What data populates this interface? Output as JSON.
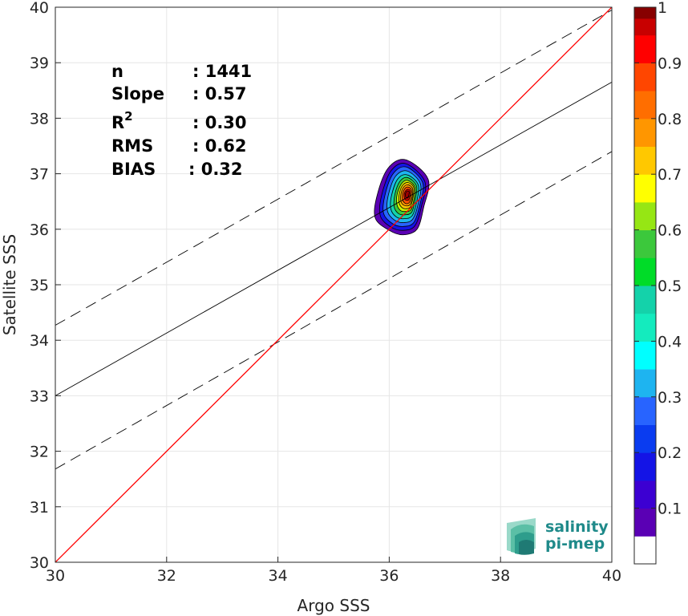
{
  "chart_data": {
    "type": "contour",
    "xlabel": "Argo SSS",
    "ylabel": "Satellite SSS",
    "xlim": [
      30,
      40
    ],
    "ylim": [
      30,
      40
    ],
    "xticks": [
      30,
      32,
      34,
      36,
      38,
      40
    ],
    "yticks": [
      30,
      31,
      32,
      33,
      34,
      35,
      36,
      37,
      38,
      39,
      40
    ],
    "grid": true,
    "stats": [
      {
        "label": "n",
        "value": ": 1441"
      },
      {
        "label": "Slope",
        "value": ": 0.57"
      },
      {
        "label": "R",
        "sup": "2",
        "value": ": 0.30"
      },
      {
        "label": "RMS",
        "value": ": 0.62"
      },
      {
        "label": "BIAS",
        "value": ": 0.32"
      }
    ],
    "lines": {
      "identity": {
        "x": [
          30,
          40
        ],
        "y": [
          30,
          40
        ],
        "color": "#ff0000"
      },
      "fit": {
        "x": [
          30,
          40
        ],
        "y": [
          33.0,
          38.65
        ],
        "color": "#000000"
      },
      "fit_upper": {
        "x": [
          30,
          40
        ],
        "y": [
          34.27,
          39.95
        ],
        "color": "#000000",
        "dash": true
      },
      "fit_lower": {
        "x": [
          30,
          40
        ],
        "y": [
          31.68,
          37.4
        ],
        "color": "#000000",
        "dash": true
      }
    },
    "density": {
      "peak_x": 36.33,
      "peak_y": 36.63,
      "levels": [
        {
          "level": 0.05,
          "color": "#5a00b4",
          "x": [
            35.98,
            36.3,
            36.7,
            36.62,
            36.5,
            36.25,
            36.0,
            35.75,
            35.78,
            35.98
          ],
          "y": [
            37.1,
            37.25,
            36.9,
            36.4,
            36.0,
            35.9,
            35.98,
            36.2,
            36.6,
            37.1
          ]
        },
        {
          "level": 0.15,
          "color": "#1414e6",
          "x": [
            36.03,
            36.3,
            36.64,
            36.58,
            36.46,
            36.25,
            36.03,
            35.84,
            35.86,
            36.03
          ],
          "y": [
            37.05,
            37.18,
            36.86,
            36.42,
            36.06,
            35.98,
            36.04,
            36.24,
            36.6,
            37.05
          ]
        },
        {
          "level": 0.25,
          "color": "#2864ff",
          "x": [
            36.07,
            36.31,
            36.6,
            36.55,
            36.44,
            36.25,
            36.06,
            35.9,
            35.92,
            36.07
          ],
          "y": [
            37.0,
            37.12,
            36.84,
            36.44,
            36.12,
            36.05,
            36.1,
            36.28,
            36.6,
            37.0
          ]
        },
        {
          "level": 0.35,
          "color": "#1eb4f0",
          "x": [
            36.11,
            36.32,
            36.56,
            36.52,
            36.42,
            36.26,
            36.1,
            35.97,
            35.98,
            36.11
          ],
          "y": [
            36.95,
            37.05,
            36.82,
            36.46,
            36.18,
            36.12,
            36.16,
            36.32,
            36.6,
            36.95
          ]
        },
        {
          "level": 0.45,
          "color": "#14d2aa",
          "x": [
            36.15,
            36.32,
            36.52,
            36.49,
            36.41,
            36.27,
            36.13,
            36.03,
            36.04,
            36.15
          ],
          "y": [
            36.9,
            36.98,
            36.8,
            36.48,
            36.24,
            36.19,
            36.22,
            36.36,
            36.6,
            36.9
          ]
        },
        {
          "level": 0.55,
          "color": "#3cc83c",
          "x": [
            36.19,
            36.33,
            36.49,
            36.46,
            36.4,
            36.28,
            36.17,
            36.09,
            36.1,
            36.19
          ],
          "y": [
            36.86,
            36.93,
            36.78,
            36.5,
            36.3,
            36.26,
            36.28,
            36.4,
            36.62,
            36.86
          ]
        },
        {
          "level": 0.62,
          "color": "#c8f000",
          "x": [
            36.22,
            36.33,
            36.46,
            36.44,
            36.39,
            36.29,
            36.2,
            36.14,
            36.14,
            36.22
          ],
          "y": [
            36.82,
            36.88,
            36.76,
            36.52,
            36.35,
            36.32,
            36.34,
            36.44,
            36.62,
            36.82
          ]
        },
        {
          "level": 0.7,
          "color": "#ffc800",
          "x": [
            36.24,
            36.34,
            36.44,
            36.42,
            36.38,
            36.3,
            36.23,
            36.18,
            36.18,
            36.24
          ],
          "y": [
            36.79,
            36.84,
            36.75,
            36.54,
            36.4,
            36.37,
            36.39,
            36.47,
            36.63,
            36.79
          ]
        },
        {
          "level": 0.78,
          "color": "#ff9600",
          "x": [
            36.26,
            36.34,
            36.42,
            36.41,
            36.37,
            36.31,
            36.25,
            36.21,
            36.21,
            36.26
          ],
          "y": [
            36.76,
            36.8,
            36.73,
            36.56,
            36.44,
            36.42,
            36.44,
            36.5,
            36.63,
            36.76
          ]
        },
        {
          "level": 0.85,
          "color": "#ff5000",
          "x": [
            36.28,
            36.34,
            36.4,
            36.39,
            36.36,
            36.31,
            36.27,
            36.24,
            36.24,
            36.28
          ],
          "y": [
            36.73,
            36.76,
            36.71,
            36.58,
            36.48,
            36.46,
            36.48,
            36.53,
            36.63,
            36.73
          ]
        },
        {
          "level": 0.92,
          "color": "#e60000",
          "x": [
            36.3,
            36.34,
            36.38,
            36.37,
            36.35,
            36.32,
            36.29,
            36.27,
            36.27,
            36.3
          ],
          "y": [
            36.7,
            36.72,
            36.69,
            36.6,
            36.53,
            36.52,
            36.53,
            36.57,
            36.64,
            36.7
          ]
        },
        {
          "level": 0.97,
          "color": "#9b0000",
          "x": [
            36.31,
            36.34,
            36.36,
            36.35,
            36.34,
            36.32,
            36.3,
            36.29,
            36.29,
            36.31
          ],
          "y": [
            36.68,
            36.69,
            36.67,
            36.61,
            36.57,
            36.56,
            36.57,
            36.6,
            36.64,
            36.68
          ]
        }
      ]
    },
    "colorbar": {
      "range": [
        0,
        1
      ],
      "ticks": [
        0.1,
        0.2,
        0.3,
        0.4,
        0.5,
        0.6,
        0.7,
        0.8,
        0.9,
        1
      ],
      "tick_labels": [
        "0.1",
        "0.2",
        "0.3",
        "0.4",
        "0.5",
        "0.6",
        "0.7",
        "0.8",
        "0.9",
        "1"
      ],
      "bands": [
        {
          "from": 0.0,
          "to": 0.05,
          "color": "#ffffff"
        },
        {
          "from": 0.05,
          "to": 0.1,
          "color": "#5a00b4"
        },
        {
          "from": 0.1,
          "to": 0.15,
          "color": "#3c00d2"
        },
        {
          "from": 0.15,
          "to": 0.2,
          "color": "#1414e6"
        },
        {
          "from": 0.2,
          "to": 0.25,
          "color": "#0a3cf0"
        },
        {
          "from": 0.25,
          "to": 0.3,
          "color": "#2864ff"
        },
        {
          "from": 0.3,
          "to": 0.35,
          "color": "#1eb4f0"
        },
        {
          "from": 0.35,
          "to": 0.4,
          "color": "#00ffff"
        },
        {
          "from": 0.4,
          "to": 0.45,
          "color": "#14ebbe"
        },
        {
          "from": 0.45,
          "to": 0.5,
          "color": "#14d2aa"
        },
        {
          "from": 0.5,
          "to": 0.55,
          "color": "#00dc28"
        },
        {
          "from": 0.55,
          "to": 0.6,
          "color": "#3cc83c"
        },
        {
          "from": 0.6,
          "to": 0.65,
          "color": "#96e614"
        },
        {
          "from": 0.65,
          "to": 0.7,
          "color": "#ffff00"
        },
        {
          "from": 0.7,
          "to": 0.75,
          "color": "#ffc800"
        },
        {
          "from": 0.75,
          "to": 0.8,
          "color": "#ff9600"
        },
        {
          "from": 0.8,
          "to": 0.85,
          "color": "#ff6e00"
        },
        {
          "from": 0.85,
          "to": 0.9,
          "color": "#ff4600"
        },
        {
          "from": 0.9,
          "to": 0.95,
          "color": "#ff0000"
        },
        {
          "from": 0.95,
          "to": 0.98,
          "color": "#c80000"
        },
        {
          "from": 0.98,
          "to": 1.0,
          "color": "#870000"
        }
      ]
    }
  },
  "logo": {
    "line1": "salinity",
    "line2": "pi-mep",
    "color": "#1f8a8a"
  }
}
